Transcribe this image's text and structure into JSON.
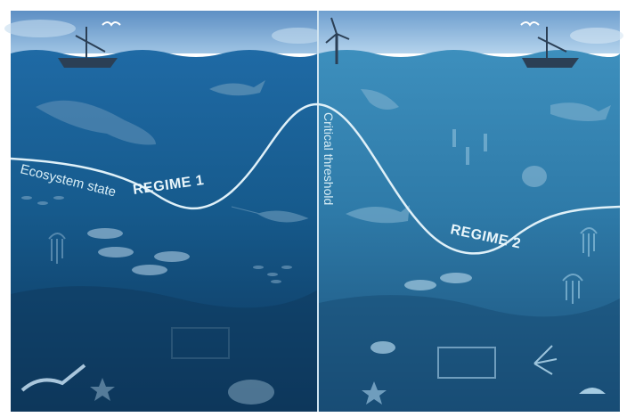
{
  "labels": {
    "curve": "Ecosystem state",
    "regime_1": "REGIME 1",
    "threshold": "Critical threshold",
    "regime_2": "REGIME 2"
  }
}
